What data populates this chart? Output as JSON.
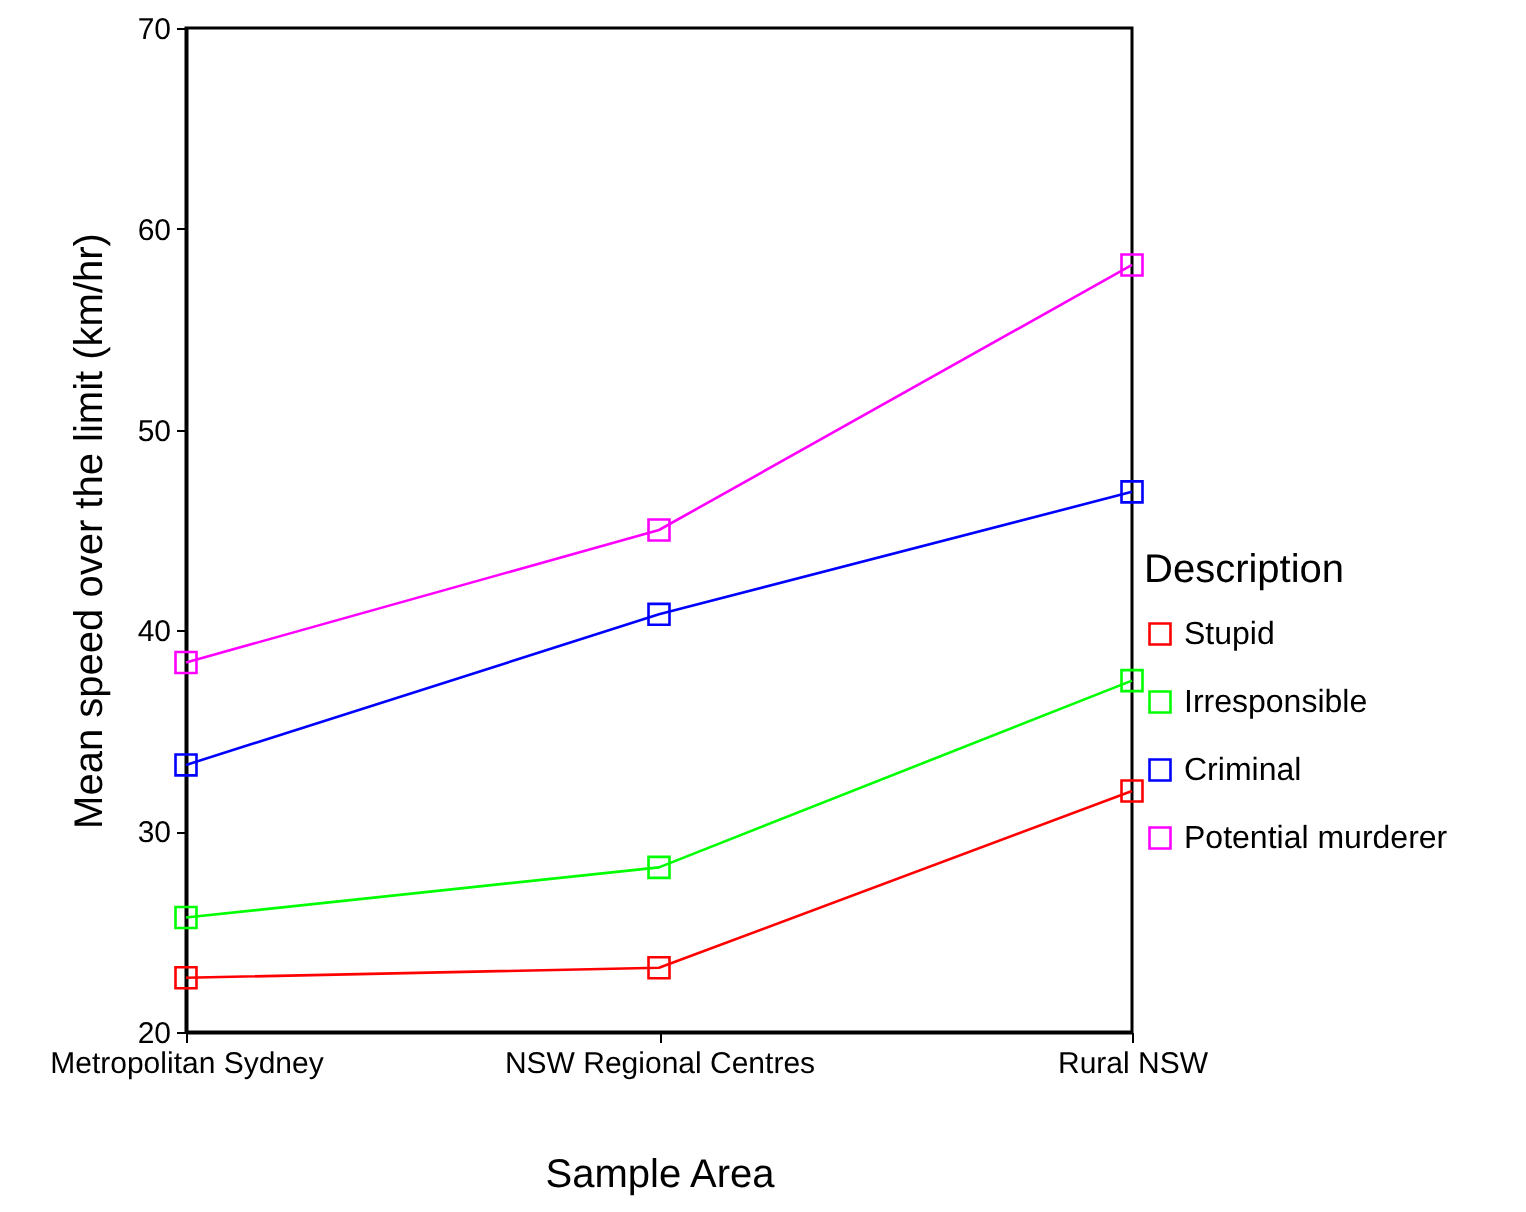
{
  "chart_data": {
    "type": "line",
    "xlabel": "Sample Area",
    "ylabel": "Mean speed over the limit (km/hr)",
    "legend_title": "Description",
    "categories": [
      "Metropolitan Sydney",
      "NSW Regional Centres",
      "Rural NSW"
    ],
    "series": [
      {
        "name": "Stupid",
        "color": "#ff0000",
        "values": [
          22.7,
          23.2,
          32.0
        ]
      },
      {
        "name": "Irresponsible",
        "color": "#00ff00",
        "values": [
          25.7,
          28.2,
          37.5
        ]
      },
      {
        "name": "Criminal",
        "color": "#0000ff",
        "values": [
          33.3,
          40.8,
          46.9
        ]
      },
      {
        "name": "Potential murderer",
        "color": "#ff00ff",
        "values": [
          38.4,
          45.0,
          58.2
        ]
      }
    ],
    "ylim": [
      20,
      70
    ],
    "yticks": [
      20,
      30,
      40,
      50,
      60,
      70
    ],
    "grid": false,
    "legend": "right",
    "marker": "square",
    "line_style": "solid"
  }
}
